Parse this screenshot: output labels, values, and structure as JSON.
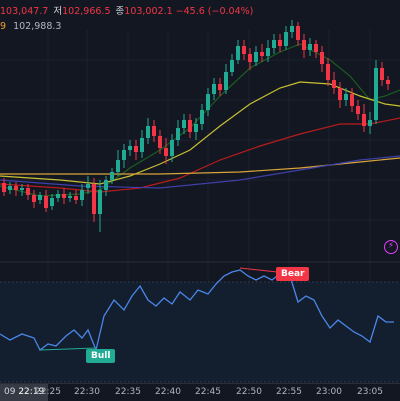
{
  "legend": {
    "ohlc": [
      {
        "label": "",
        "value": "103,047.7"
      },
      {
        "label": "저",
        "value": "102,966.5"
      },
      {
        "label": "종",
        "value": "103,002.1"
      },
      {
        "label": "",
        "value": "−45.6 (−0.04%)"
      }
    ],
    "ma_period": "9",
    "ma_value": "102,988.3"
  },
  "colors": {
    "up": "#22ab94",
    "down": "#f23645",
    "ma1": "#1b5e20",
    "ma2": "#c8c032",
    "ma3": "#b71c1c",
    "ma4": "#d9a43a",
    "ma5": "#3f3fa8",
    "rsi": "#4a86e8"
  },
  "signals": {
    "bear": "Bear",
    "bull": "Bull"
  },
  "time_axis": {
    "cursor": "22:19",
    "cursor_prefix": "09",
    "ticks": [
      "22:25",
      "22:30",
      "22:35",
      "22:40",
      "22:45",
      "22:50",
      "22:55",
      "23:00",
      "23:05"
    ]
  },
  "icons": {
    "bolt": "lightning-icon"
  }
}
